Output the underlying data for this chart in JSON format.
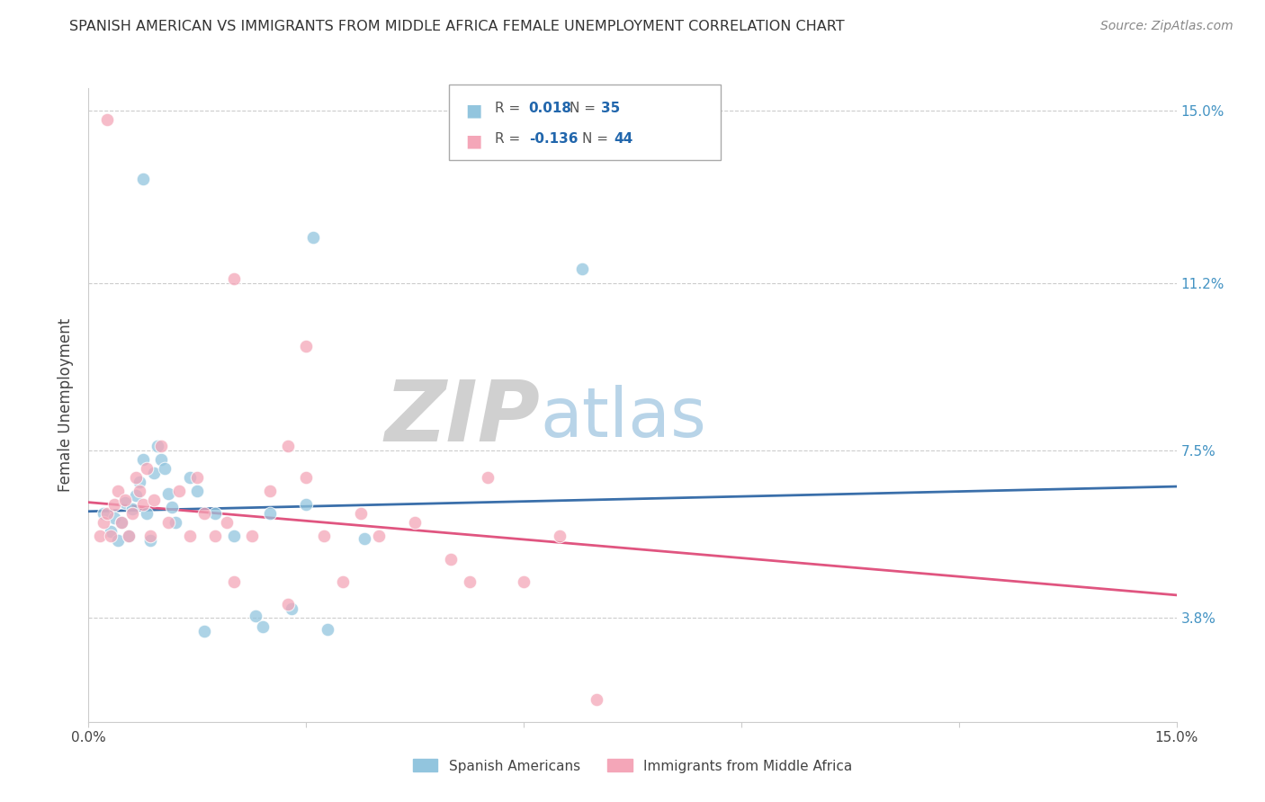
{
  "title": "SPANISH AMERICAN VS IMMIGRANTS FROM MIDDLE AFRICA FEMALE UNEMPLOYMENT CORRELATION CHART",
  "source": "Source: ZipAtlas.com",
  "ylabel": "Female Unemployment",
  "xlim": [
    0.0,
    15.0
  ],
  "ylim": [
    1.5,
    15.5
  ],
  "ytick_vals": [
    3.8,
    7.5,
    11.2,
    15.0
  ],
  "ytick_labels": [
    "3.8%",
    "7.5%",
    "11.2%",
    "15.0%"
  ],
  "blue_color": "#92c5de",
  "pink_color": "#f4a6b8",
  "blue_line_color": "#3a6faa",
  "pink_line_color": "#e05580",
  "R_blue": 0.018,
  "N_blue": 35,
  "R_pink": -0.136,
  "N_pink": 44,
  "blue_trend": [
    6.15,
    6.7
  ],
  "pink_trend": [
    6.35,
    4.3
  ],
  "blue_points": [
    [
      0.2,
      6.1
    ],
    [
      0.3,
      5.7
    ],
    [
      0.35,
      6.0
    ],
    [
      0.4,
      5.5
    ],
    [
      0.45,
      5.9
    ],
    [
      0.5,
      6.35
    ],
    [
      0.55,
      5.6
    ],
    [
      0.6,
      6.2
    ],
    [
      0.65,
      6.5
    ],
    [
      0.7,
      6.8
    ],
    [
      0.75,
      7.3
    ],
    [
      0.8,
      6.1
    ],
    [
      0.85,
      5.5
    ],
    [
      0.9,
      7.0
    ],
    [
      0.95,
      7.6
    ],
    [
      1.0,
      7.3
    ],
    [
      1.05,
      7.1
    ],
    [
      1.1,
      6.55
    ],
    [
      1.15,
      6.25
    ],
    [
      1.2,
      5.9
    ],
    [
      1.4,
      6.9
    ],
    [
      1.5,
      6.6
    ],
    [
      1.6,
      3.5
    ],
    [
      1.75,
      6.1
    ],
    [
      2.0,
      5.6
    ],
    [
      2.3,
      3.85
    ],
    [
      2.4,
      3.6
    ],
    [
      2.5,
      6.1
    ],
    [
      2.8,
      4.0
    ],
    [
      3.0,
      6.3
    ],
    [
      3.3,
      3.55
    ],
    [
      3.8,
      5.55
    ],
    [
      0.75,
      13.5
    ],
    [
      3.1,
      12.2
    ],
    [
      6.8,
      11.5
    ]
  ],
  "pink_points": [
    [
      0.15,
      5.6
    ],
    [
      0.2,
      5.9
    ],
    [
      0.25,
      6.1
    ],
    [
      0.3,
      5.6
    ],
    [
      0.35,
      6.3
    ],
    [
      0.4,
      6.6
    ],
    [
      0.45,
      5.9
    ],
    [
      0.5,
      6.4
    ],
    [
      0.55,
      5.6
    ],
    [
      0.6,
      6.1
    ],
    [
      0.65,
      6.9
    ],
    [
      0.7,
      6.6
    ],
    [
      0.75,
      6.3
    ],
    [
      0.8,
      7.1
    ],
    [
      0.85,
      5.6
    ],
    [
      0.9,
      6.4
    ],
    [
      1.0,
      7.6
    ],
    [
      1.1,
      5.9
    ],
    [
      1.25,
      6.6
    ],
    [
      1.4,
      5.6
    ],
    [
      1.5,
      6.9
    ],
    [
      1.6,
      6.1
    ],
    [
      1.75,
      5.6
    ],
    [
      1.9,
      5.9
    ],
    [
      2.0,
      4.6
    ],
    [
      2.25,
      5.6
    ],
    [
      2.5,
      6.6
    ],
    [
      2.75,
      7.6
    ],
    [
      3.0,
      6.9
    ],
    [
      3.25,
      5.6
    ],
    [
      3.5,
      4.6
    ],
    [
      3.75,
      6.1
    ],
    [
      4.0,
      5.6
    ],
    [
      4.5,
      5.9
    ],
    [
      5.0,
      5.1
    ],
    [
      5.25,
      4.6
    ],
    [
      5.5,
      6.9
    ],
    [
      6.0,
      4.6
    ],
    [
      6.5,
      5.6
    ],
    [
      7.0,
      2.0
    ],
    [
      0.25,
      14.8
    ],
    [
      2.0,
      11.3
    ],
    [
      3.0,
      9.8
    ],
    [
      2.75,
      4.1
    ]
  ]
}
